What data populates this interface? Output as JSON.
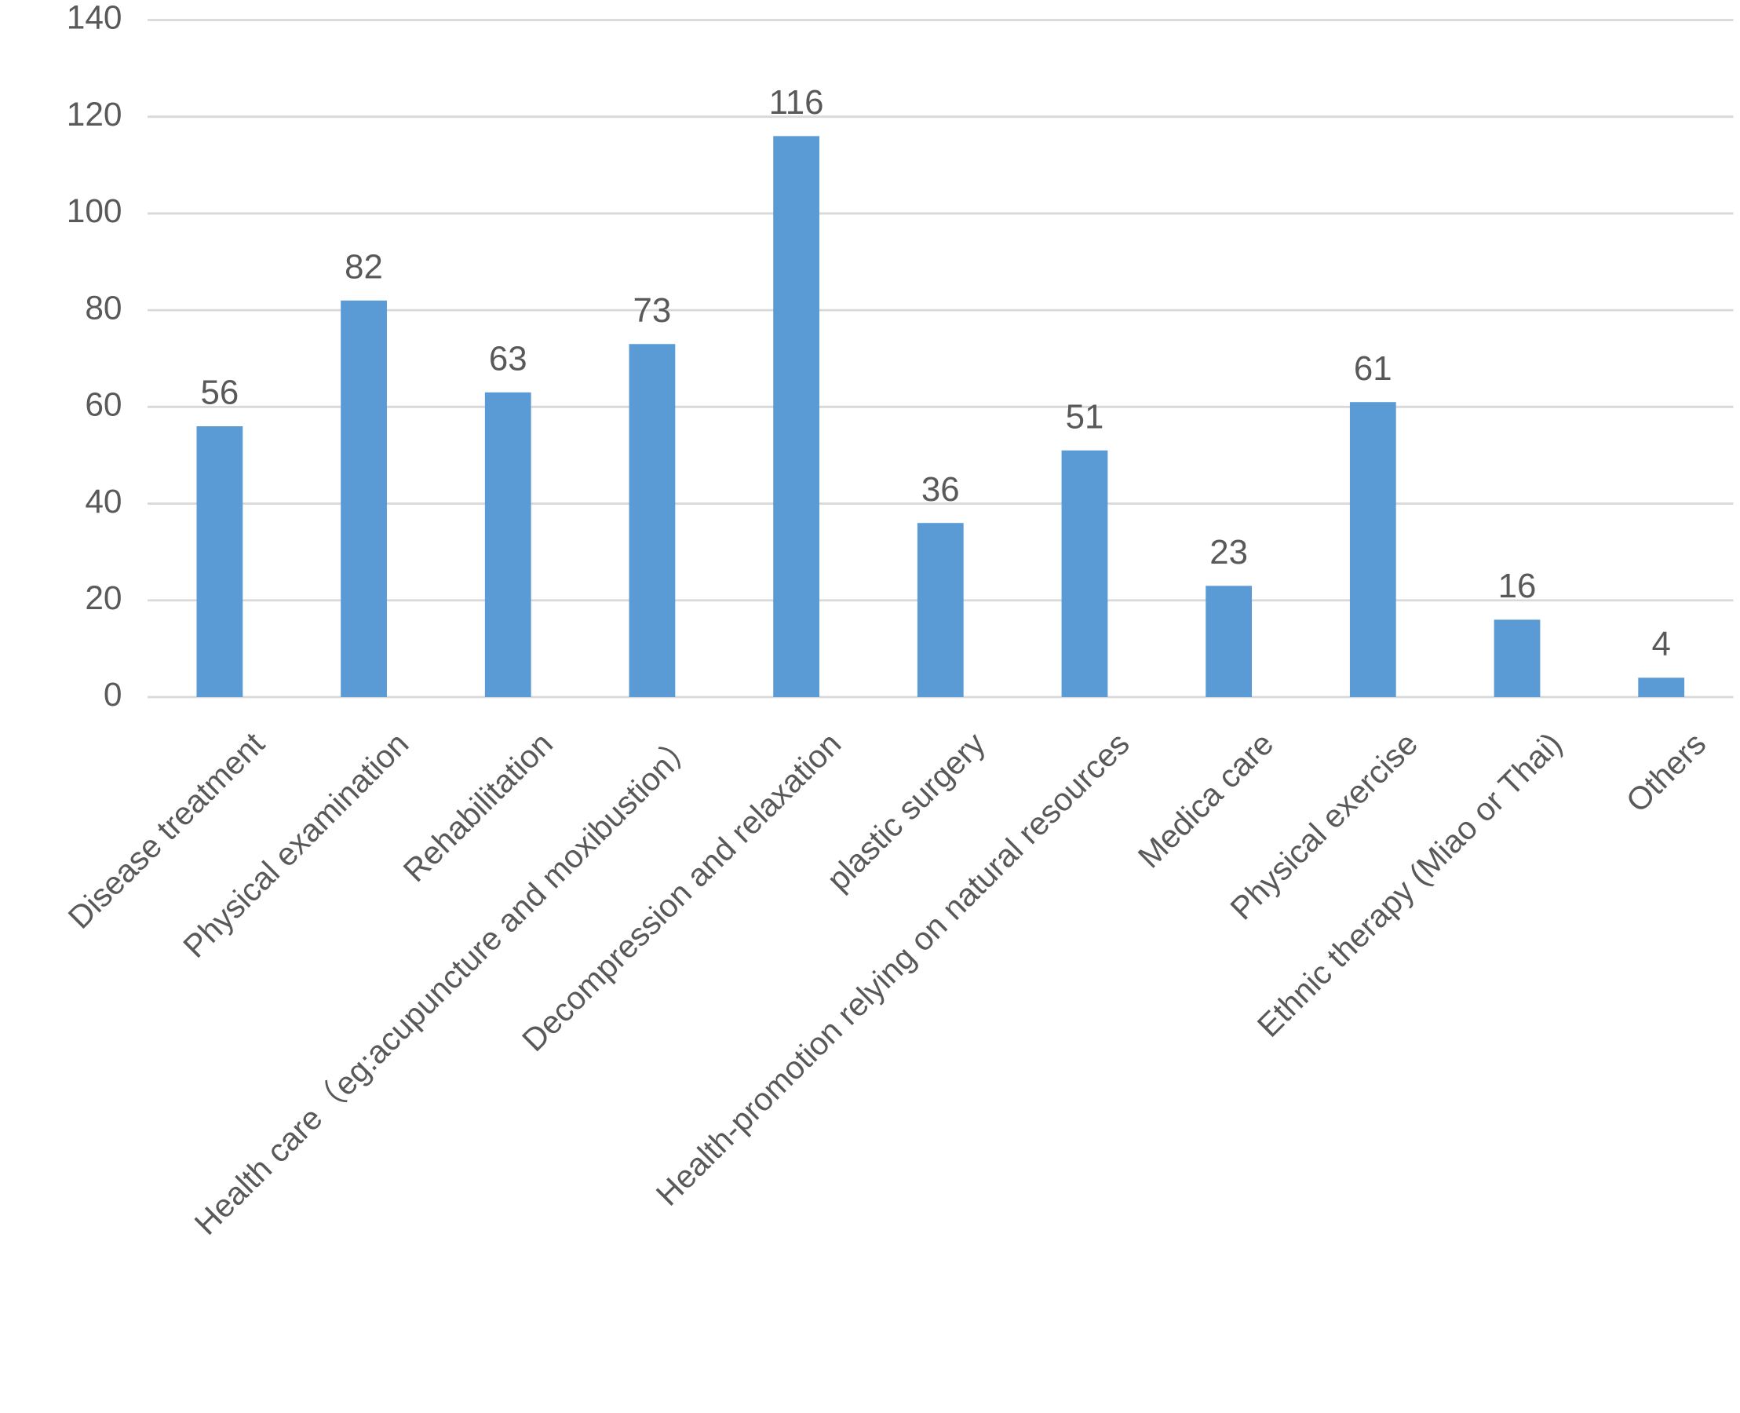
{
  "chart_data": {
    "type": "bar",
    "categories": [
      "Disease treatment",
      "Physical examination",
      "Rehabilitation",
      "Health care（eg:acupuncture and moxibustion）",
      "Decompression and relaxation",
      "plastic surgery",
      "Health-promotion relying on natural resources",
      "Medica care",
      "Physical exercise",
      "Ethnic therapy (Miao or Thai)",
      "Others"
    ],
    "values": [
      56,
      82,
      63,
      73,
      116,
      36,
      51,
      23,
      61,
      16,
      4
    ],
    "color": "#5b9bd5",
    "ylim": [
      0,
      140
    ],
    "yticks": [
      0,
      20,
      40,
      60,
      80,
      100,
      120,
      140
    ],
    "grid": true
  }
}
